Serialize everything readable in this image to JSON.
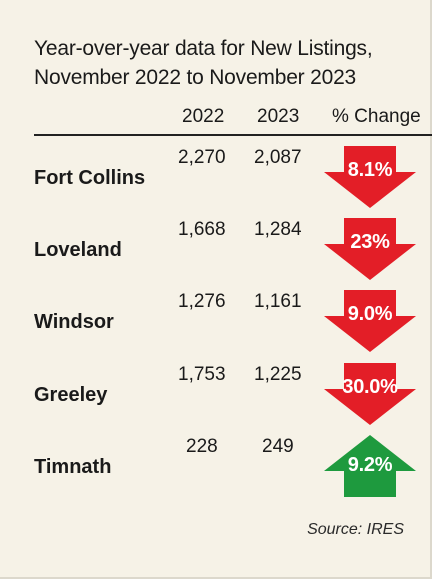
{
  "chart_data": {
    "type": "table",
    "title_line1": "Year-over-year data for New Listings,",
    "title_line2": "November 2022 to November 2023",
    "columns": [
      "2022",
      "2023",
      "% Change"
    ],
    "rows": [
      {
        "city": "Fort Collins",
        "v2022": "2,270",
        "v2023": "2,087",
        "change": "8.1%",
        "direction": "down"
      },
      {
        "city": "Loveland",
        "v2022": "1,668",
        "v2023": "1,284",
        "change": "23%",
        "direction": "down"
      },
      {
        "city": "Windsor",
        "v2022": "1,276",
        "v2023": "1,161",
        "change": "9.0%",
        "direction": "down"
      },
      {
        "city": "Greeley",
        "v2022": "1,753",
        "v2023": "1,225",
        "change": "30.0%",
        "direction": "down"
      },
      {
        "city": "Timnath",
        "v2022": "228",
        "v2023": "249",
        "change": "9.2%",
        "direction": "up"
      }
    ],
    "source": "Source: IRES"
  },
  "colors": {
    "down_arrow": "#e31e27",
    "up_arrow": "#1e9a3e",
    "background": "#f6f2e7"
  }
}
